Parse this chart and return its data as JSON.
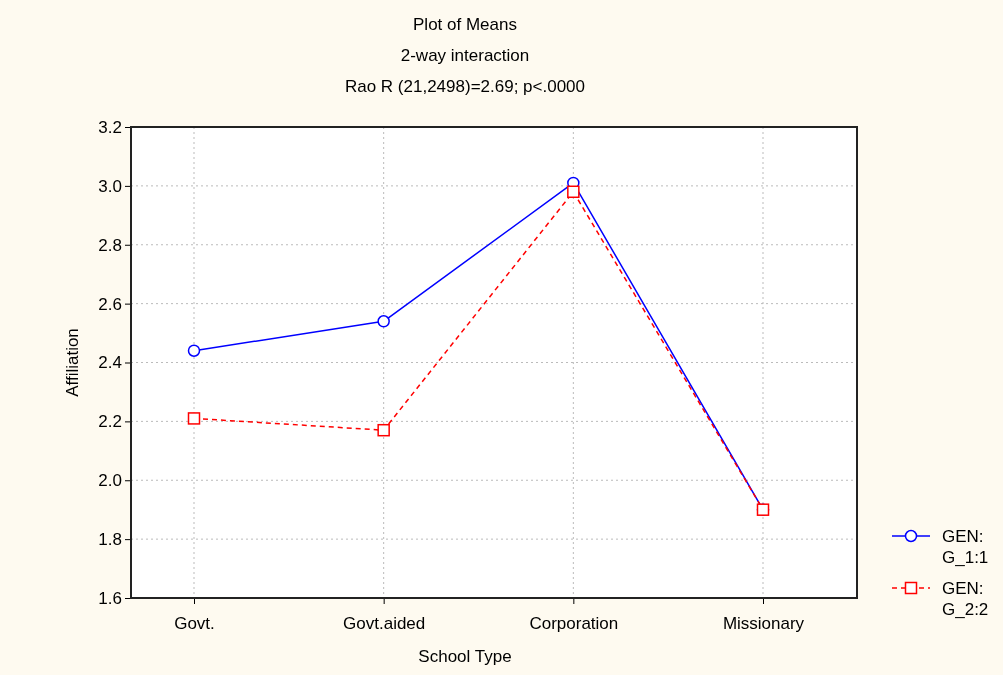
{
  "chart_data": {
    "type": "line",
    "title": "Plot of Means",
    "subtitle": "2-way interaction",
    "annotations": [
      "Rao R (21,2498)=2.69; p<.0000"
    ],
    "xlabel": "School Type",
    "ylabel": "Affiliation",
    "categories": [
      "Govt.",
      "Govt.aided",
      "Corporation",
      "Missionary"
    ],
    "series": [
      {
        "name": "GEN: G_1:1",
        "color": "#0000ff",
        "values": [
          2.44,
          2.54,
          3.01,
          1.9
        ],
        "marker": "circle",
        "line_style": "solid"
      },
      {
        "name": "GEN: G_2:2",
        "color": "#ff0000",
        "values": [
          2.21,
          2.17,
          2.98,
          1.9
        ],
        "marker": "square",
        "line_style": "dashed"
      }
    ],
    "ylim": [
      1.6,
      3.2
    ],
    "yticks": [
      {
        "value": 1.6,
        "label": "1.6"
      },
      {
        "value": 1.8,
        "label": "1.8"
      },
      {
        "value": 2,
        "label": "2.0"
      },
      {
        "value": 2.2,
        "label": "2.2"
      },
      {
        "value": 2.4,
        "label": "2.4"
      },
      {
        "value": 2.6,
        "label": "2.6"
      },
      {
        "value": 2.8,
        "label": "2.8"
      },
      {
        "value": 3,
        "label": "3.0"
      },
      {
        "value": 3.2,
        "label": "3.2"
      }
    ],
    "grid": true,
    "legend": "bottom right"
  }
}
